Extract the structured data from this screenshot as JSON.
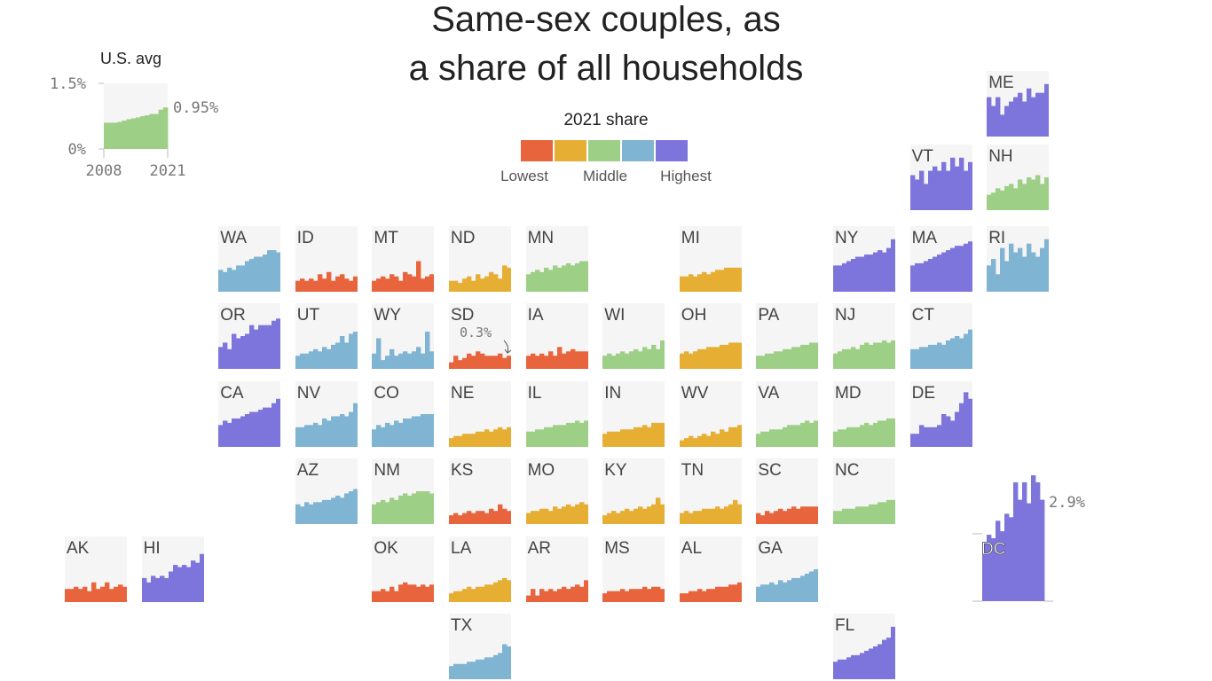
{
  "title_line1": "Same-sex couples, as",
  "title_line2": "a share of all households",
  "legend": {
    "title": "2021 share",
    "colors": [
      "#e8643c",
      "#e6ae33",
      "#9ecf86",
      "#7fb4d2",
      "#7e75dc"
    ],
    "labels": [
      "Lowest",
      "Middle",
      "Highest"
    ]
  },
  "us_avg": {
    "title": "U.S. avg",
    "ytick_top": "1.5%",
    "ytick_bottom": "0%",
    "xtick_start": "2008",
    "xtick_end": "2021",
    "end_label": "0.95%",
    "color": "#9ecf86",
    "ylim": [
      0,
      1.5
    ]
  },
  "dc": {
    "label": "DC",
    "end_label": "2.9%"
  },
  "annotation_sd": "0.3%",
  "chart_data": {
    "type": "bar",
    "years": [
      2008,
      2009,
      2010,
      2011,
      2012,
      2013,
      2014,
      2015,
      2016,
      2017,
      2018,
      2019,
      2020,
      2021
    ],
    "ylim": [
      0,
      1.5
    ],
    "us_avg_values": [
      0.6,
      0.6,
      0.6,
      0.62,
      0.65,
      0.68,
      0.7,
      0.72,
      0.75,
      0.77,
      0.8,
      0.8,
      0.9,
      0.95
    ],
    "states": [
      {
        "name": "ME",
        "color": "#7e75dc",
        "values": [
          0.9,
          0.7,
          0.9,
          0.5,
          0.7,
          0.8,
          0.9,
          1.0,
          0.8,
          1.1,
          0.9,
          1.0,
          1.0,
          1.2
        ]
      },
      {
        "name": "VT",
        "color": "#7e75dc",
        "values": [
          0.8,
          0.7,
          0.9,
          0.6,
          0.9,
          1.0,
          0.9,
          1.1,
          0.9,
          1.2,
          1.0,
          1.2,
          0.9,
          1.1
        ]
      },
      {
        "name": "NH",
        "color": "#9ecf86",
        "values": [
          0.35,
          0.4,
          0.5,
          0.45,
          0.55,
          0.6,
          0.5,
          0.7,
          0.6,
          0.75,
          0.7,
          0.8,
          0.6,
          0.75
        ]
      },
      {
        "name": "WA",
        "color": "#7fb4d2",
        "values": [
          0.5,
          0.45,
          0.55,
          0.5,
          0.6,
          0.6,
          0.7,
          0.75,
          0.8,
          0.8,
          0.85,
          0.95,
          0.95,
          0.9
        ]
      },
      {
        "name": "ID",
        "color": "#e8643c",
        "values": [
          0.25,
          0.3,
          0.25,
          0.3,
          0.25,
          0.4,
          0.3,
          0.45,
          0.25,
          0.35,
          0.4,
          0.3,
          0.25,
          0.35
        ]
      },
      {
        "name": "MT",
        "color": "#e8643c",
        "values": [
          0.25,
          0.3,
          0.35,
          0.3,
          0.4,
          0.35,
          0.25,
          0.45,
          0.4,
          0.35,
          0.7,
          0.3,
          0.35,
          0.4
        ]
      },
      {
        "name": "ND",
        "color": "#e6ae33",
        "values": [
          0.25,
          0.25,
          0.2,
          0.3,
          0.35,
          0.25,
          0.4,
          0.3,
          0.35,
          0.45,
          0.4,
          0.3,
          0.6,
          0.55
        ]
      },
      {
        "name": "MN",
        "color": "#9ecf86",
        "values": [
          0.4,
          0.45,
          0.5,
          0.45,
          0.55,
          0.5,
          0.6,
          0.55,
          0.6,
          0.65,
          0.6,
          0.65,
          0.7,
          0.7
        ]
      },
      {
        "name": "MI",
        "color": "#e6ae33",
        "values": [
          0.35,
          0.35,
          0.4,
          0.35,
          0.4,
          0.45,
          0.4,
          0.45,
          0.5,
          0.5,
          0.55,
          0.55,
          0.55,
          0.55
        ]
      },
      {
        "name": "NY",
        "color": "#7e75dc",
        "values": [
          0.6,
          0.6,
          0.65,
          0.7,
          0.75,
          0.8,
          0.8,
          0.85,
          0.85,
          0.9,
          0.95,
          0.9,
          1.0,
          1.2
        ]
      },
      {
        "name": "MA",
        "color": "#7e75dc",
        "values": [
          0.6,
          0.65,
          0.65,
          0.7,
          0.75,
          0.8,
          0.85,
          0.9,
          0.95,
          1.0,
          1.05,
          1.05,
          1.1,
          1.15
        ]
      },
      {
        "name": "RI",
        "color": "#7fb4d2",
        "values": [
          0.6,
          0.75,
          0.4,
          1.0,
          0.7,
          1.1,
          0.9,
          1.0,
          0.8,
          1.1,
          0.9,
          0.8,
          1.0,
          1.2
        ]
      },
      {
        "name": "OR",
        "color": "#7e75dc",
        "values": [
          0.5,
          0.6,
          0.45,
          0.8,
          0.7,
          0.75,
          0.8,
          1.0,
          0.9,
          1.0,
          1.0,
          1.0,
          1.1,
          1.15
        ]
      },
      {
        "name": "UT",
        "color": "#7fb4d2",
        "values": [
          0.3,
          0.35,
          0.35,
          0.4,
          0.45,
          0.4,
          0.5,
          0.45,
          0.55,
          0.6,
          0.75,
          0.6,
          0.8,
          0.85
        ]
      },
      {
        "name": "WY",
        "color": "#7fb4d2",
        "values": [
          0.35,
          0.7,
          0.2,
          0.3,
          0.45,
          0.3,
          0.35,
          0.4,
          0.35,
          0.4,
          0.5,
          0.35,
          0.85,
          0.4
        ]
      },
      {
        "name": "SD",
        "color": "#e8643c",
        "values": [
          0.15,
          0.3,
          0.2,
          0.25,
          0.35,
          0.3,
          0.4,
          0.35,
          0.3,
          0.3,
          0.3,
          0.35,
          0.25,
          0.3
        ]
      },
      {
        "name": "IA",
        "color": "#e8643c",
        "values": [
          0.3,
          0.35,
          0.3,
          0.35,
          0.3,
          0.4,
          0.3,
          0.5,
          0.35,
          0.4,
          0.45,
          0.4,
          0.4,
          0.4
        ]
      },
      {
        "name": "WI",
        "color": "#9ecf86",
        "values": [
          0.3,
          0.35,
          0.3,
          0.35,
          0.4,
          0.35,
          0.4,
          0.45,
          0.4,
          0.5,
          0.45,
          0.55,
          0.45,
          0.65
        ]
      },
      {
        "name": "OH",
        "color": "#e6ae33",
        "values": [
          0.35,
          0.4,
          0.35,
          0.4,
          0.45,
          0.45,
          0.5,
          0.5,
          0.5,
          0.55,
          0.55,
          0.6,
          0.6,
          0.6
        ]
      },
      {
        "name": "PA",
        "color": "#9ecf86",
        "values": [
          0.3,
          0.3,
          0.35,
          0.35,
          0.4,
          0.4,
          0.45,
          0.45,
          0.5,
          0.5,
          0.55,
          0.55,
          0.6,
          0.6
        ]
      },
      {
        "name": "NJ",
        "color": "#9ecf86",
        "values": [
          0.35,
          0.4,
          0.45,
          0.45,
          0.5,
          0.45,
          0.55,
          0.6,
          0.55,
          0.6,
          0.6,
          0.65,
          0.6,
          0.65
        ]
      },
      {
        "name": "CT",
        "color": "#7fb4d2",
        "values": [
          0.45,
          0.45,
          0.5,
          0.5,
          0.55,
          0.55,
          0.6,
          0.55,
          0.65,
          0.7,
          0.75,
          0.7,
          0.8,
          0.9
        ]
      },
      {
        "name": "CA",
        "color": "#7e75dc",
        "values": [
          0.5,
          0.6,
          0.55,
          0.65,
          0.65,
          0.7,
          0.75,
          0.8,
          0.8,
          0.85,
          0.9,
          0.9,
          1.0,
          1.1
        ]
      },
      {
        "name": "NV",
        "color": "#7fb4d2",
        "values": [
          0.45,
          0.45,
          0.5,
          0.5,
          0.55,
          0.5,
          0.65,
          0.6,
          0.7,
          0.7,
          0.75,
          0.7,
          0.8,
          1.0
        ]
      },
      {
        "name": "CO",
        "color": "#7fb4d2",
        "values": [
          0.4,
          0.5,
          0.45,
          0.55,
          0.5,
          0.6,
          0.55,
          0.65,
          0.65,
          0.7,
          0.7,
          0.75,
          0.75,
          0.75
        ]
      },
      {
        "name": "NE",
        "color": "#e6ae33",
        "values": [
          0.2,
          0.25,
          0.25,
          0.3,
          0.3,
          0.3,
          0.35,
          0.35,
          0.4,
          0.35,
          0.4,
          0.45,
          0.4,
          0.45
        ]
      },
      {
        "name": "IL",
        "color": "#9ecf86",
        "values": [
          0.35,
          0.35,
          0.4,
          0.4,
          0.45,
          0.45,
          0.5,
          0.5,
          0.5,
          0.55,
          0.55,
          0.6,
          0.55,
          0.6
        ]
      },
      {
        "name": "IN",
        "color": "#e6ae33",
        "values": [
          0.3,
          0.35,
          0.35,
          0.35,
          0.4,
          0.4,
          0.4,
          0.45,
          0.45,
          0.5,
          0.45,
          0.55,
          0.55,
          0.55
        ]
      },
      {
        "name": "WV",
        "color": "#e6ae33",
        "values": [
          0.15,
          0.2,
          0.25,
          0.2,
          0.25,
          0.3,
          0.25,
          0.35,
          0.3,
          0.4,
          0.35,
          0.45,
          0.45,
          0.5
        ]
      },
      {
        "name": "VA",
        "color": "#9ecf86",
        "values": [
          0.3,
          0.35,
          0.35,
          0.4,
          0.4,
          0.4,
          0.45,
          0.5,
          0.5,
          0.5,
          0.55,
          0.6,
          0.55,
          0.6
        ]
      },
      {
        "name": "MD",
        "color": "#9ecf86",
        "values": [
          0.35,
          0.4,
          0.4,
          0.45,
          0.45,
          0.45,
          0.5,
          0.55,
          0.5,
          0.55,
          0.6,
          0.6,
          0.65,
          0.65
        ]
      },
      {
        "name": "DE",
        "color": "#7e75dc",
        "values": [
          0.3,
          0.3,
          0.5,
          0.45,
          0.45,
          0.45,
          0.5,
          0.75,
          0.7,
          0.6,
          0.8,
          1.0,
          1.25,
          1.1
        ]
      },
      {
        "name": "AZ",
        "color": "#7fb4d2",
        "values": [
          0.45,
          0.4,
          0.5,
          0.45,
          0.5,
          0.5,
          0.55,
          0.55,
          0.6,
          0.65,
          0.6,
          0.7,
          0.75,
          0.8
        ]
      },
      {
        "name": "NM",
        "color": "#9ecf86",
        "values": [
          0.45,
          0.5,
          0.55,
          0.5,
          0.6,
          0.55,
          0.65,
          0.7,
          0.65,
          0.7,
          0.75,
          0.75,
          0.75,
          0.7
        ]
      },
      {
        "name": "KS",
        "color": "#e8643c",
        "values": [
          0.2,
          0.25,
          0.2,
          0.25,
          0.3,
          0.25,
          0.3,
          0.3,
          0.25,
          0.35,
          0.3,
          0.45,
          0.35,
          0.3
        ]
      },
      {
        "name": "MO",
        "color": "#e6ae33",
        "values": [
          0.25,
          0.3,
          0.3,
          0.35,
          0.35,
          0.3,
          0.4,
          0.35,
          0.4,
          0.45,
          0.4,
          0.45,
          0.5,
          0.45
        ]
      },
      {
        "name": "KY",
        "color": "#e6ae33",
        "values": [
          0.2,
          0.25,
          0.3,
          0.25,
          0.3,
          0.35,
          0.3,
          0.35,
          0.4,
          0.35,
          0.4,
          0.45,
          0.6,
          0.45
        ]
      },
      {
        "name": "TN",
        "color": "#e6ae33",
        "values": [
          0.25,
          0.3,
          0.25,
          0.3,
          0.3,
          0.35,
          0.35,
          0.35,
          0.4,
          0.35,
          0.4,
          0.45,
          0.55,
          0.45
        ]
      },
      {
        "name": "SC",
        "color": "#e8643c",
        "values": [
          0.25,
          0.2,
          0.3,
          0.25,
          0.3,
          0.35,
          0.3,
          0.35,
          0.4,
          0.35,
          0.4,
          0.4,
          0.4,
          0.4
        ]
      },
      {
        "name": "NC",
        "color": "#9ecf86",
        "values": [
          0.3,
          0.3,
          0.35,
          0.35,
          0.35,
          0.4,
          0.4,
          0.4,
          0.45,
          0.45,
          0.5,
          0.5,
          0.55,
          0.55
        ]
      },
      {
        "name": "AK",
        "color": "#e8643c",
        "values": [
          0.3,
          0.3,
          0.35,
          0.3,
          0.35,
          0.25,
          0.45,
          0.3,
          0.35,
          0.45,
          0.3,
          0.35,
          0.4,
          0.35
        ]
      },
      {
        "name": "HI",
        "color": "#7e75dc",
        "values": [
          0.55,
          0.45,
          0.6,
          0.55,
          0.6,
          0.55,
          0.7,
          0.85,
          0.8,
          0.85,
          0.8,
          0.95,
          0.9,
          1.1
        ]
      },
      {
        "name": "OK",
        "color": "#e8643c",
        "values": [
          0.25,
          0.25,
          0.3,
          0.25,
          0.35,
          0.25,
          0.4,
          0.45,
          0.4,
          0.4,
          0.35,
          0.4,
          0.35,
          0.4
        ]
      },
      {
        "name": "LA",
        "color": "#e6ae33",
        "values": [
          0.2,
          0.25,
          0.25,
          0.3,
          0.35,
          0.3,
          0.35,
          0.35,
          0.4,
          0.4,
          0.45,
          0.5,
          0.55,
          0.5
        ]
      },
      {
        "name": "AR",
        "color": "#e8643c",
        "values": [
          0.15,
          0.3,
          0.15,
          0.3,
          0.25,
          0.3,
          0.25,
          0.3,
          0.35,
          0.3,
          0.35,
          0.4,
          0.35,
          0.5
        ]
      },
      {
        "name": "MS",
        "color": "#e8643c",
        "values": [
          0.2,
          0.25,
          0.25,
          0.25,
          0.3,
          0.25,
          0.3,
          0.3,
          0.3,
          0.35,
          0.3,
          0.35,
          0.35,
          0.3
        ]
      },
      {
        "name": "AL",
        "color": "#e8643c",
        "values": [
          0.2,
          0.2,
          0.25,
          0.25,
          0.3,
          0.25,
          0.3,
          0.3,
          0.35,
          0.35,
          0.35,
          0.4,
          0.4,
          0.45
        ]
      },
      {
        "name": "GA",
        "color": "#7fb4d2",
        "values": [
          0.35,
          0.4,
          0.4,
          0.45,
          0.4,
          0.5,
          0.45,
          0.5,
          0.55,
          0.55,
          0.6,
          0.65,
          0.7,
          0.75
        ]
      },
      {
        "name": "TX",
        "color": "#7fb4d2",
        "values": [
          0.3,
          0.35,
          0.35,
          0.35,
          0.4,
          0.4,
          0.45,
          0.45,
          0.5,
          0.5,
          0.55,
          0.6,
          0.8,
          0.75
        ]
      },
      {
        "name": "FL",
        "color": "#7e75dc",
        "values": [
          0.4,
          0.45,
          0.45,
          0.5,
          0.55,
          0.55,
          0.6,
          0.65,
          0.7,
          0.75,
          0.8,
          0.9,
          0.95,
          1.2
        ]
      }
    ],
    "dc_values": [
      1.7,
      1.9,
      1.8,
      2.3,
      2.0,
      2.5,
      2.4,
      3.4,
      2.9,
      3.4,
      2.8,
      3.6,
      3.4,
      2.9
    ],
    "dc_ylim": [
      0,
      3.6
    ]
  }
}
